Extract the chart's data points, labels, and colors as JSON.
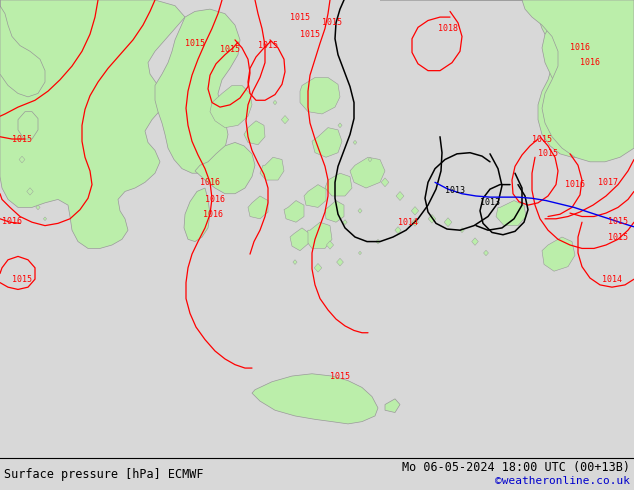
{
  "title_left": "Surface pressure [hPa] ECMWF",
  "title_right": "Mo 06-05-2024 18:00 UTC (00+13B)",
  "credit": "©weatheronline.co.uk",
  "credit_color": "#0000cc",
  "bg_color": "#d8d8d8",
  "land_color": "#bbeeaa",
  "sea_color": "#d8d8d8",
  "border_color": "#999999",
  "red": "#ff0000",
  "black": "#000000",
  "blue": "#0000ee",
  "fig_width": 6.34,
  "fig_height": 4.9,
  "footer_fontsize": 8.5
}
